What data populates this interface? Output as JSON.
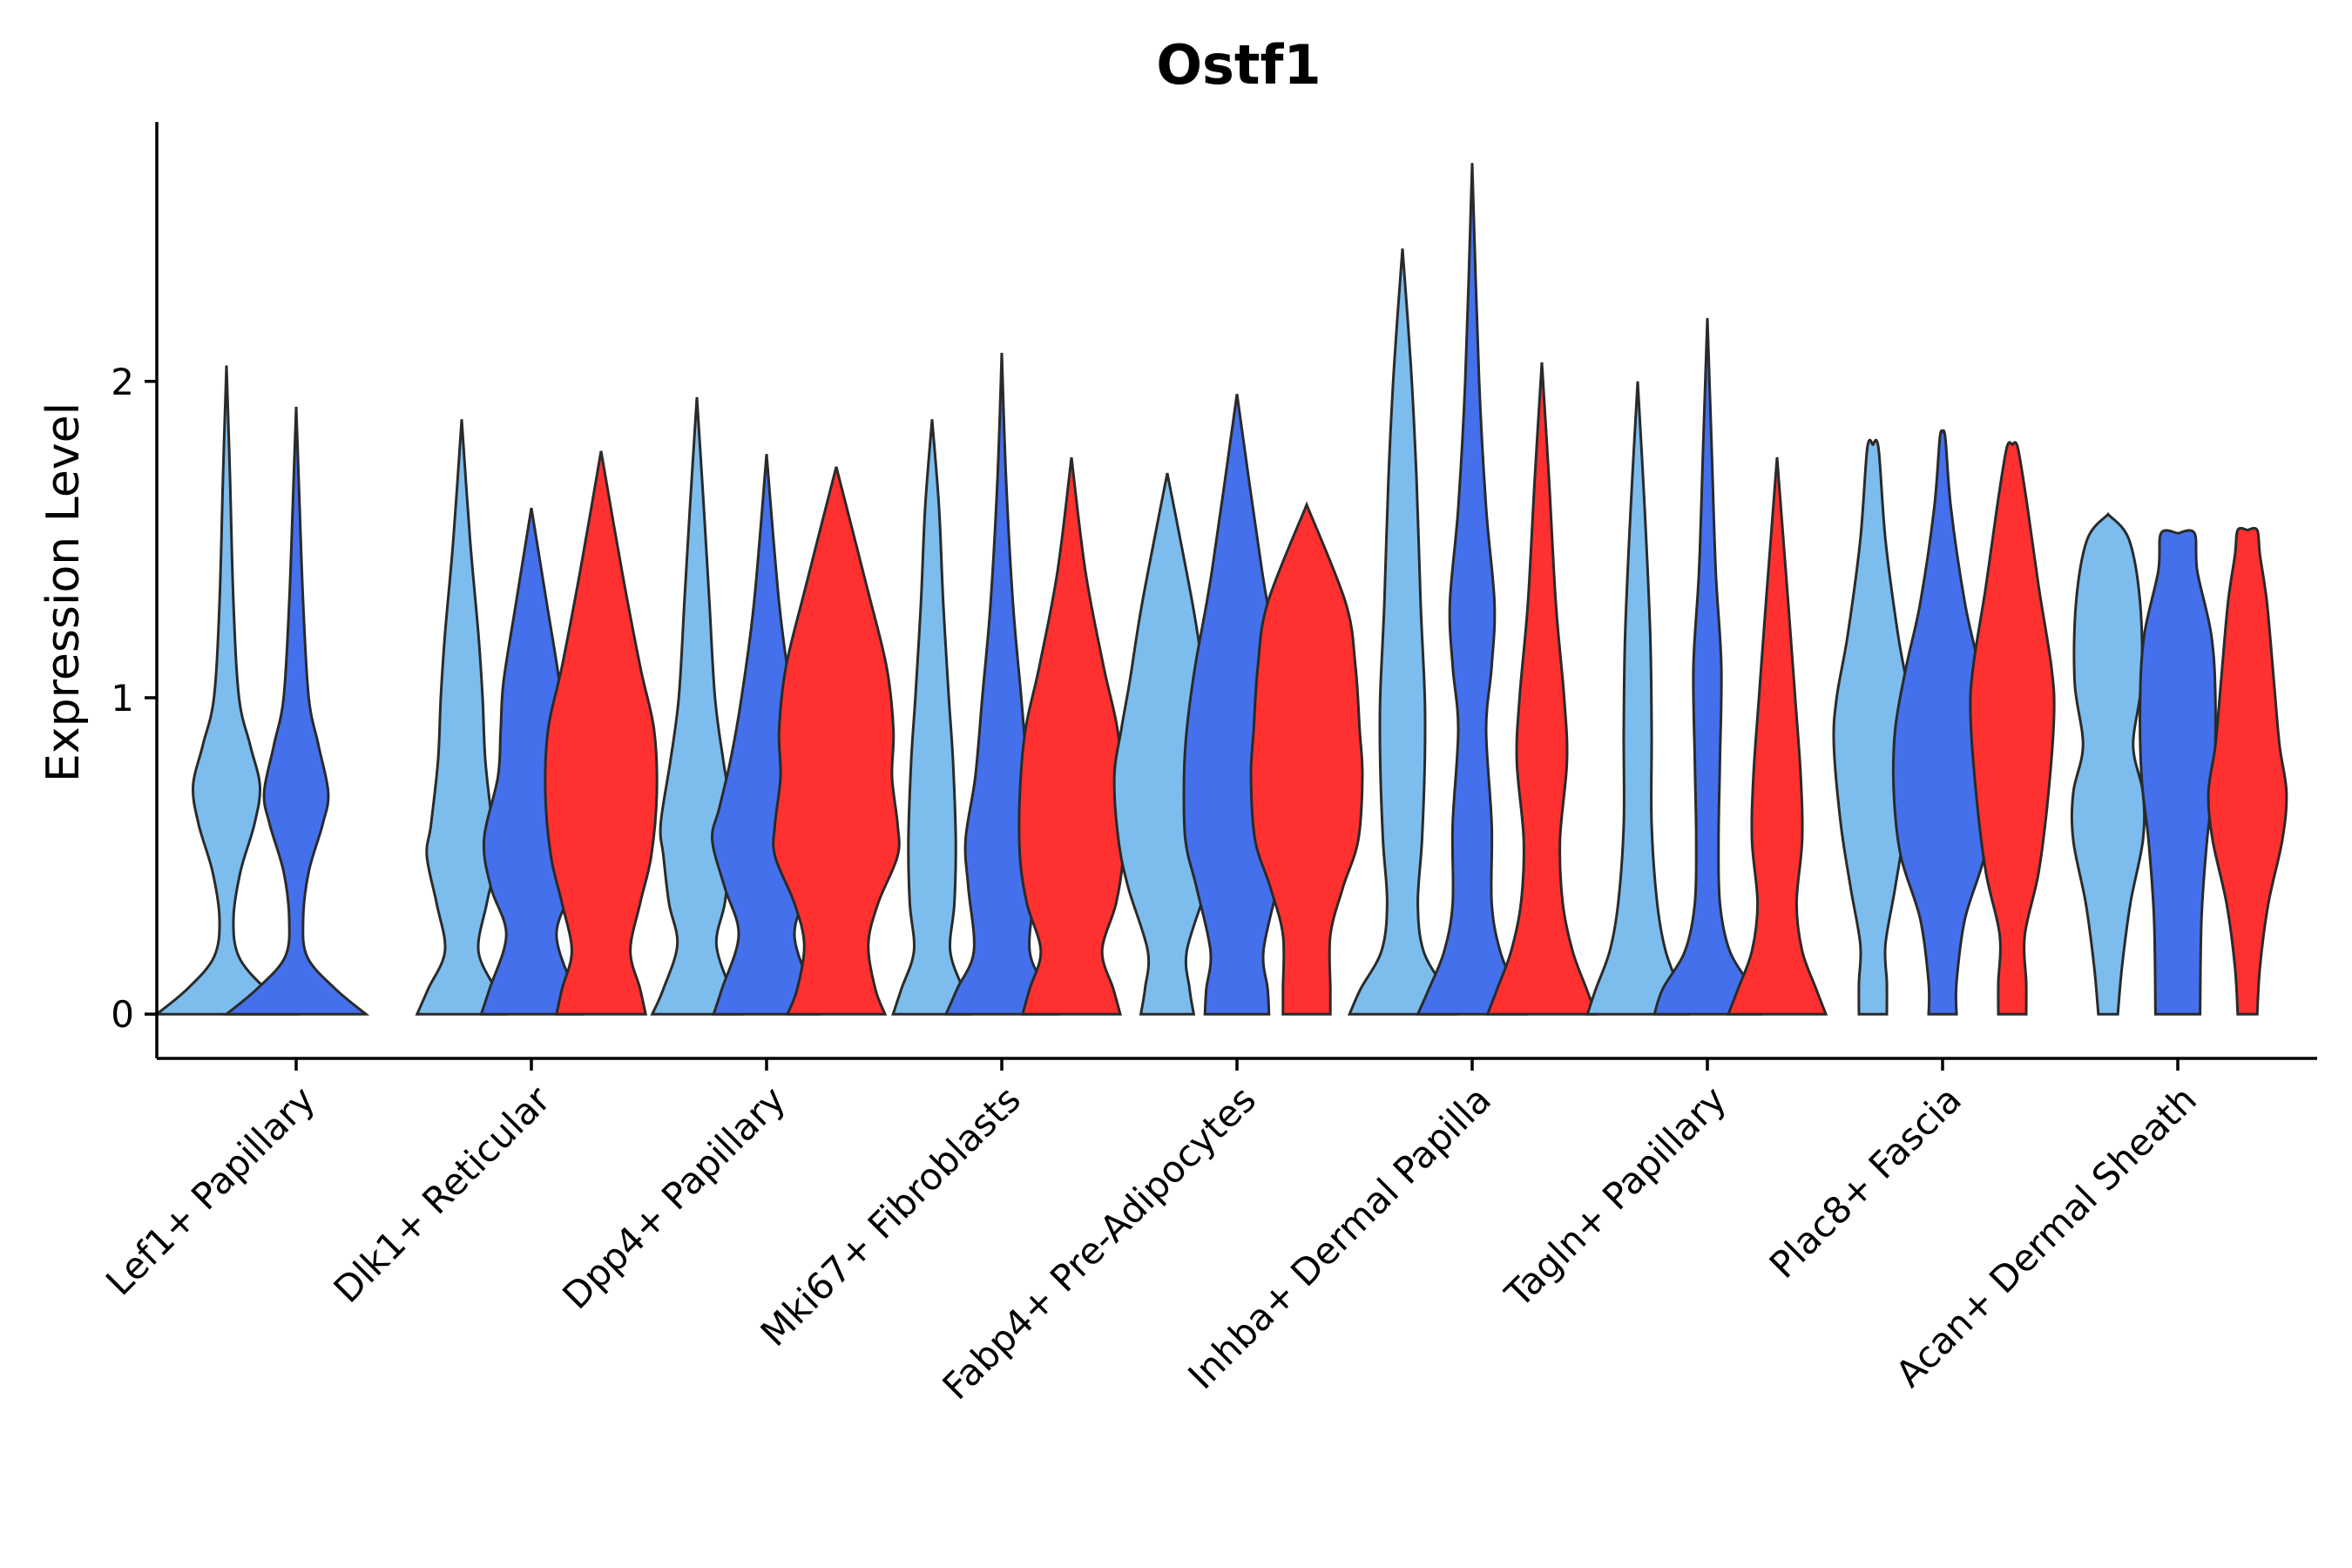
{
  "chart_data": {
    "type": "violin",
    "title": "Ostf1",
    "xlabel": "",
    "ylabel": "Expression Level",
    "ylim": [
      -0.14,
      2.82
    ],
    "yticks": [
      0,
      1,
      2
    ],
    "grid": false,
    "legend": "none",
    "colors": {
      "light_blue": "#7dbdee",
      "blue": "#4470ec",
      "red": "#ff3030",
      "outline": "#2a2a2a"
    },
    "categories": [
      "Lef1+ Papillary",
      "Dlk1+ Reticular",
      "Dpp4+ Papillary",
      "Mki67+ Fibroblasts",
      "Fabp4+ Pre-Adipocytes",
      "Inhba+ Dermal Papilla",
      "Tagln+ Papillary",
      "Plac8+ Fascia",
      "Acan+ Dermal Sheath"
    ],
    "series": [
      {
        "name": "light_blue",
        "color": "#7dbdee",
        "max": [
          2.05,
          1.88,
          1.95,
          1.88,
          1.71,
          2.42,
          2.0,
          1.8,
          1.58
        ]
      },
      {
        "name": "blue",
        "color": "#4470ec",
        "max": [
          1.92,
          1.6,
          1.77,
          2.09,
          1.96,
          2.69,
          2.2,
          1.84,
          1.52
        ]
      },
      {
        "name": "red",
        "color": "#ff3030",
        "max": [
          null,
          1.78,
          1.73,
          1.76,
          1.61,
          2.06,
          1.76,
          1.8,
          1.53
        ]
      }
    ],
    "violins": [
      {
        "category": 0,
        "series": 0,
        "shape": [
          [
            0,
            0.5
          ],
          [
            0.08,
            0.28
          ],
          [
            0.18,
            0.09
          ],
          [
            0.3,
            0.05
          ],
          [
            0.45,
            0.1
          ],
          [
            0.6,
            0.2
          ],
          [
            0.72,
            0.24
          ],
          [
            0.85,
            0.17
          ],
          [
            1.0,
            0.09
          ],
          [
            1.3,
            0.05
          ],
          [
            1.7,
            0.025
          ],
          [
            2.05,
            0
          ]
        ]
      },
      {
        "category": 0,
        "series": 1,
        "shape": [
          [
            0,
            0.5
          ],
          [
            0.08,
            0.28
          ],
          [
            0.18,
            0.08
          ],
          [
            0.3,
            0.05
          ],
          [
            0.45,
            0.09
          ],
          [
            0.6,
            0.19
          ],
          [
            0.7,
            0.23
          ],
          [
            0.85,
            0.16
          ],
          [
            1.0,
            0.09
          ],
          [
            1.3,
            0.05
          ],
          [
            1.6,
            0.025
          ],
          [
            1.92,
            0
          ]
        ]
      },
      {
        "category": 1,
        "series": 0,
        "shape": [
          [
            0,
            0.32
          ],
          [
            0.08,
            0.24
          ],
          [
            0.2,
            0.12
          ],
          [
            0.35,
            0.18
          ],
          [
            0.5,
            0.25
          ],
          [
            0.6,
            0.22
          ],
          [
            0.8,
            0.17
          ],
          [
            1.0,
            0.15
          ],
          [
            1.2,
            0.12
          ],
          [
            1.5,
            0.06
          ],
          [
            1.88,
            0
          ]
        ]
      },
      {
        "category": 1,
        "series": 1,
        "shape": [
          [
            0,
            0.36
          ],
          [
            0.08,
            0.3
          ],
          [
            0.25,
            0.18
          ],
          [
            0.4,
            0.29
          ],
          [
            0.55,
            0.34
          ],
          [
            0.75,
            0.24
          ],
          [
            0.9,
            0.22
          ],
          [
            1.05,
            0.2
          ],
          [
            1.3,
            0.11
          ],
          [
            1.6,
            0
          ]
        ]
      },
      {
        "category": 1,
        "series": 2,
        "shape": [
          [
            0,
            0.32
          ],
          [
            0.08,
            0.28
          ],
          [
            0.2,
            0.21
          ],
          [
            0.35,
            0.28
          ],
          [
            0.5,
            0.36
          ],
          [
            0.7,
            0.4
          ],
          [
            0.9,
            0.38
          ],
          [
            1.1,
            0.28
          ],
          [
            1.4,
            0.15
          ],
          [
            1.78,
            0
          ]
        ]
      },
      {
        "category": 2,
        "series": 0,
        "shape": [
          [
            0,
            0.32
          ],
          [
            0.08,
            0.24
          ],
          [
            0.22,
            0.14
          ],
          [
            0.35,
            0.2
          ],
          [
            0.5,
            0.24
          ],
          [
            0.6,
            0.26
          ],
          [
            0.8,
            0.19
          ],
          [
            1.0,
            0.13
          ],
          [
            1.3,
            0.09
          ],
          [
            1.6,
            0.05
          ],
          [
            1.95,
            0
          ]
        ]
      },
      {
        "category": 2,
        "series": 1,
        "shape": [
          [
            0,
            0.38
          ],
          [
            0.08,
            0.32
          ],
          [
            0.25,
            0.2
          ],
          [
            0.4,
            0.3
          ],
          [
            0.55,
            0.39
          ],
          [
            0.65,
            0.34
          ],
          [
            0.8,
            0.26
          ],
          [
            1.0,
            0.18
          ],
          [
            1.3,
            0.09
          ],
          [
            1.77,
            0
          ]
        ]
      },
      {
        "category": 2,
        "series": 2,
        "shape": [
          [
            0,
            0.35
          ],
          [
            0.08,
            0.28
          ],
          [
            0.22,
            0.23
          ],
          [
            0.35,
            0.3
          ],
          [
            0.5,
            0.44
          ],
          [
            0.6,
            0.44
          ],
          [
            0.75,
            0.4
          ],
          [
            0.9,
            0.41
          ],
          [
            1.1,
            0.36
          ],
          [
            1.35,
            0.22
          ],
          [
            1.73,
            0
          ]
        ]
      },
      {
        "category": 3,
        "series": 0,
        "shape": [
          [
            0,
            0.28
          ],
          [
            0.08,
            0.22
          ],
          [
            0.2,
            0.13
          ],
          [
            0.35,
            0.16
          ],
          [
            0.55,
            0.17
          ],
          [
            0.8,
            0.15
          ],
          [
            1.0,
            0.12
          ],
          [
            1.3,
            0.08
          ],
          [
            1.6,
            0.05
          ],
          [
            1.88,
            0
          ]
        ]
      },
      {
        "category": 3,
        "series": 1,
        "shape": [
          [
            0,
            0.4
          ],
          [
            0.08,
            0.32
          ],
          [
            0.2,
            0.2
          ],
          [
            0.4,
            0.24
          ],
          [
            0.55,
            0.26
          ],
          [
            0.75,
            0.19
          ],
          [
            1.0,
            0.14
          ],
          [
            1.3,
            0.08
          ],
          [
            1.7,
            0.03
          ],
          [
            2.09,
            0
          ]
        ]
      },
      {
        "category": 3,
        "series": 2,
        "shape": [
          [
            0,
            0.35
          ],
          [
            0.08,
            0.3
          ],
          [
            0.2,
            0.22
          ],
          [
            0.35,
            0.32
          ],
          [
            0.5,
            0.37
          ],
          [
            0.7,
            0.37
          ],
          [
            0.9,
            0.33
          ],
          [
            1.1,
            0.23
          ],
          [
            1.4,
            0.1
          ],
          [
            1.76,
            0
          ]
        ]
      },
      {
        "category": 4,
        "series": 0,
        "shape": [
          [
            0,
            0.19
          ],
          [
            0.08,
            0.16
          ],
          [
            0.2,
            0.14
          ],
          [
            0.4,
            0.28
          ],
          [
            0.55,
            0.35
          ],
          [
            0.75,
            0.38
          ],
          [
            0.9,
            0.33
          ],
          [
            1.05,
            0.27
          ],
          [
            1.3,
            0.18
          ],
          [
            1.71,
            0
          ]
        ]
      },
      {
        "category": 4,
        "series": 1,
        "shape": [
          [
            0,
            0.23
          ],
          [
            0.08,
            0.22
          ],
          [
            0.2,
            0.19
          ],
          [
            0.4,
            0.29
          ],
          [
            0.55,
            0.37
          ],
          [
            0.75,
            0.38
          ],
          [
            0.9,
            0.36
          ],
          [
            1.1,
            0.3
          ],
          [
            1.4,
            0.18
          ],
          [
            1.96,
            0
          ]
        ]
      },
      {
        "category": 4,
        "series": 2,
        "shape": [
          [
            0,
            0.17
          ],
          [
            0.08,
            0.17
          ],
          [
            0.25,
            0.17
          ],
          [
            0.4,
            0.26
          ],
          [
            0.55,
            0.37
          ],
          [
            0.75,
            0.4
          ],
          [
            0.9,
            0.38
          ],
          [
            1.1,
            0.35
          ],
          [
            1.3,
            0.28
          ],
          [
            1.61,
            0
          ]
        ]
      },
      {
        "category": 5,
        "series": 0,
        "shape": [
          [
            0,
            0.38
          ],
          [
            0.08,
            0.3
          ],
          [
            0.2,
            0.15
          ],
          [
            0.35,
            0.11
          ],
          [
            0.55,
            0.14
          ],
          [
            0.8,
            0.16
          ],
          [
            1.0,
            0.16
          ],
          [
            1.3,
            0.13
          ],
          [
            1.7,
            0.1
          ],
          [
            2.05,
            0.06
          ],
          [
            2.42,
            0
          ]
        ]
      },
      {
        "category": 5,
        "series": 1,
        "shape": [
          [
            0,
            0.39
          ],
          [
            0.08,
            0.31
          ],
          [
            0.2,
            0.2
          ],
          [
            0.35,
            0.14
          ],
          [
            0.6,
            0.14
          ],
          [
            0.9,
            0.1
          ],
          [
            1.1,
            0.14
          ],
          [
            1.3,
            0.16
          ],
          [
            1.6,
            0.1
          ],
          [
            2.0,
            0.05
          ],
          [
            2.69,
            0
          ]
        ]
      },
      {
        "category": 5,
        "series": 2,
        "shape": [
          [
            0,
            0.39
          ],
          [
            0.08,
            0.32
          ],
          [
            0.2,
            0.22
          ],
          [
            0.35,
            0.15
          ],
          [
            0.55,
            0.13
          ],
          [
            0.8,
            0.18
          ],
          [
            1.0,
            0.16
          ],
          [
            1.3,
            0.1
          ],
          [
            1.7,
            0.05
          ],
          [
            2.06,
            0
          ]
        ]
      },
      {
        "category": 6,
        "series": 0,
        "shape": [
          [
            0,
            0.36
          ],
          [
            0.08,
            0.3
          ],
          [
            0.2,
            0.2
          ],
          [
            0.35,
            0.14
          ],
          [
            0.6,
            0.1
          ],
          [
            0.9,
            0.1
          ],
          [
            1.2,
            0.09
          ],
          [
            1.6,
            0.05
          ],
          [
            2.0,
            0
          ]
        ]
      },
      {
        "category": 6,
        "series": 1,
        "shape": [
          [
            0,
            0.38
          ],
          [
            0.08,
            0.32
          ],
          [
            0.2,
            0.16
          ],
          [
            0.35,
            0.09
          ],
          [
            0.55,
            0.08
          ],
          [
            0.8,
            0.09
          ],
          [
            1.1,
            0.1
          ],
          [
            1.4,
            0.06
          ],
          [
            1.8,
            0.03
          ],
          [
            2.2,
            0
          ]
        ]
      },
      {
        "category": 6,
        "series": 2,
        "shape": [
          [
            0,
            0.35
          ],
          [
            0.08,
            0.28
          ],
          [
            0.2,
            0.18
          ],
          [
            0.35,
            0.14
          ],
          [
            0.55,
            0.18
          ],
          [
            0.75,
            0.17
          ],
          [
            1.0,
            0.13
          ],
          [
            1.3,
            0.08
          ],
          [
            1.76,
            0
          ]
        ]
      },
      {
        "category": 7,
        "series": 0,
        "shape": [
          [
            0,
            0.1
          ],
          [
            0.1,
            0.1
          ],
          [
            0.22,
            0.09
          ],
          [
            0.4,
            0.16
          ],
          [
            0.6,
            0.23
          ],
          [
            0.85,
            0.28
          ],
          [
            1.0,
            0.26
          ],
          [
            1.2,
            0.18
          ],
          [
            1.5,
            0.09
          ],
          [
            1.79,
            0.04
          ],
          [
            1.8,
            0
          ]
        ]
      },
      {
        "category": 7,
        "series": 1,
        "shape": [
          [
            0,
            0.1
          ],
          [
            0.1,
            0.1
          ],
          [
            0.3,
            0.16
          ],
          [
            0.5,
            0.3
          ],
          [
            0.7,
            0.35
          ],
          [
            0.9,
            0.34
          ],
          [
            1.1,
            0.26
          ],
          [
            1.3,
            0.16
          ],
          [
            1.6,
            0.06
          ],
          [
            1.82,
            0.02
          ],
          [
            1.84,
            0
          ]
        ]
      },
      {
        "category": 7,
        "series": 2,
        "shape": [
          [
            0,
            0.1
          ],
          [
            0.1,
            0.1
          ],
          [
            0.25,
            0.09
          ],
          [
            0.45,
            0.19
          ],
          [
            0.7,
            0.26
          ],
          [
            0.95,
            0.3
          ],
          [
            1.1,
            0.28
          ],
          [
            1.35,
            0.19
          ],
          [
            1.6,
            0.11
          ],
          [
            1.79,
            0.04
          ],
          [
            1.8,
            0
          ]
        ]
      },
      {
        "category": 8,
        "series": 0,
        "shape": [
          [
            0,
            0.07
          ],
          [
            0.15,
            0.1
          ],
          [
            0.35,
            0.16
          ],
          [
            0.55,
            0.25
          ],
          [
            0.7,
            0.25
          ],
          [
            0.85,
            0.18
          ],
          [
            1.05,
            0.24
          ],
          [
            1.3,
            0.23
          ],
          [
            1.5,
            0.15
          ],
          [
            1.58,
            0
          ]
        ]
      },
      {
        "category": 8,
        "series": 1,
        "shape": [
          [
            0,
            0.16
          ],
          [
            0.3,
            0.17
          ],
          [
            0.55,
            0.21
          ],
          [
            0.75,
            0.26
          ],
          [
            1.0,
            0.27
          ],
          [
            1.2,
            0.24
          ],
          [
            1.4,
            0.14
          ],
          [
            1.52,
            0.12
          ],
          [
            1.52,
            0
          ]
        ]
      },
      {
        "category": 8,
        "series": 2,
        "shape": [
          [
            0,
            0.07
          ],
          [
            0.15,
            0.09
          ],
          [
            0.35,
            0.15
          ],
          [
            0.55,
            0.25
          ],
          [
            0.7,
            0.28
          ],
          [
            0.85,
            0.23
          ],
          [
            1.05,
            0.19
          ],
          [
            1.3,
            0.14
          ],
          [
            1.45,
            0.09
          ],
          [
            1.53,
            0.07
          ],
          [
            1.53,
            0
          ]
        ]
      }
    ]
  }
}
